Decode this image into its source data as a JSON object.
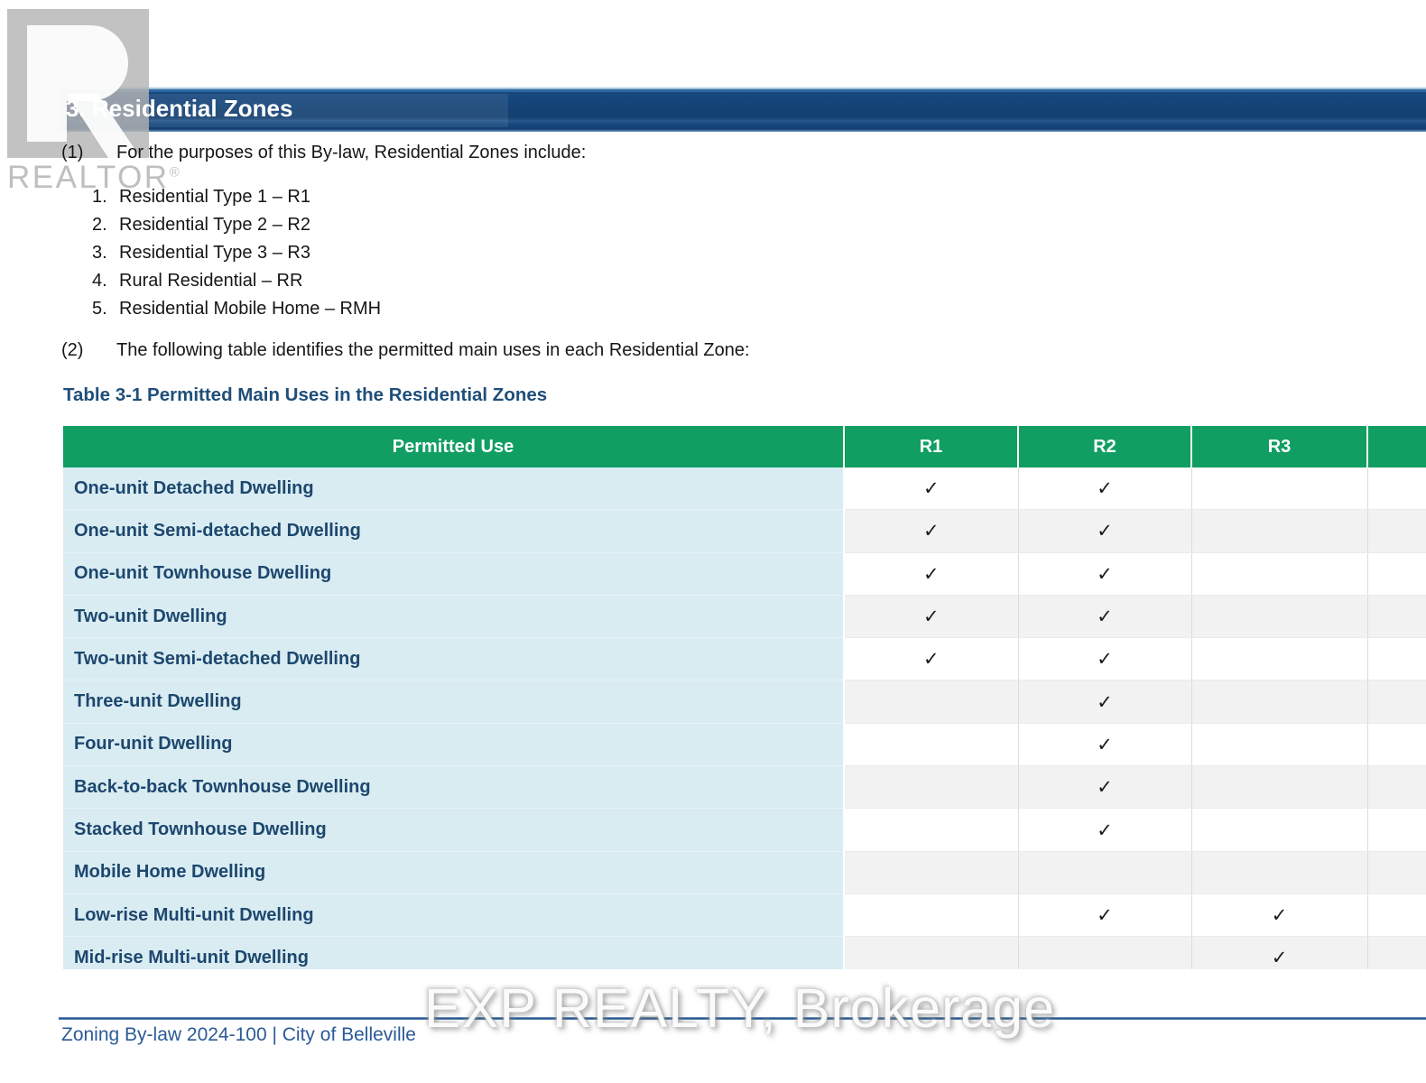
{
  "page": {
    "heading": "3. Residential Zones",
    "clause1": {
      "num": "(1)",
      "text": "For the purposes of this By-law, Residential Zones include:"
    },
    "zone_list": [
      {
        "num": "1.",
        "text": "Residential Type 1 – R1"
      },
      {
        "num": "2.",
        "text": "Residential Type 2 – R2"
      },
      {
        "num": "3.",
        "text": "Residential Type 3 – R3"
      },
      {
        "num": "4.",
        "text": "Rural Residential – RR"
      },
      {
        "num": "5.",
        "text": "Residential Mobile Home – RMH"
      }
    ],
    "clause2": {
      "num": "(2)",
      "text": "The following table identifies the permitted main uses in each Residential Zone:"
    },
    "table_title": "Table 3-1 Permitted Main Uses in the Residential Zones",
    "footer": "Zoning By-law 2024-100 | City of Belleville"
  },
  "watermarks": {
    "realtor_logo": "REALTOR",
    "realtor_reg": "®",
    "brokerage": "EXP REALTY, Brokerage"
  },
  "table": {
    "headers": [
      "Permitted Use",
      "R1",
      "R2",
      "R3",
      ""
    ],
    "check_glyph": "✓",
    "rows": [
      {
        "label": "One-unit Detached Dwelling",
        "checks": [
          true,
          true,
          false,
          false
        ]
      },
      {
        "label": "One-unit Semi-detached Dwelling",
        "checks": [
          true,
          true,
          false,
          false
        ]
      },
      {
        "label": "One-unit Townhouse Dwelling",
        "checks": [
          true,
          true,
          false,
          false
        ]
      },
      {
        "label": "Two-unit Dwelling",
        "checks": [
          true,
          true,
          false,
          false
        ]
      },
      {
        "label": "Two-unit Semi-detached Dwelling",
        "checks": [
          true,
          true,
          false,
          false
        ]
      },
      {
        "label": "Three-unit Dwelling",
        "checks": [
          false,
          true,
          false,
          false
        ]
      },
      {
        "label": "Four-unit Dwelling",
        "checks": [
          false,
          true,
          false,
          false
        ]
      },
      {
        "label": "Back-to-back Townhouse Dwelling",
        "checks": [
          false,
          true,
          false,
          false
        ]
      },
      {
        "label": "Stacked Townhouse Dwelling",
        "checks": [
          false,
          true,
          false,
          false
        ]
      },
      {
        "label": "Mobile Home Dwelling",
        "checks": [
          false,
          false,
          false,
          false
        ]
      },
      {
        "label": "Low-rise Multi-unit Dwelling",
        "checks": [
          false,
          true,
          true,
          false
        ]
      },
      {
        "label": "Mid-rise Multi-unit Dwelling",
        "checks": [
          false,
          false,
          true,
          false
        ]
      }
    ]
  },
  "colors": {
    "section_bar_navy": "#15477B",
    "table_header_green": "#119E62",
    "label_column_bg": "#D9ECF2",
    "label_text_navy": "#1D476E",
    "alt_row_gray": "#F2F2F2",
    "title_blue": "#1F4E79",
    "footer_blue": "#2B5A97",
    "footer_rule_blue": "#24568E",
    "check_color": "#1A1A1A",
    "watermark_gray": "#AFB2B4"
  }
}
